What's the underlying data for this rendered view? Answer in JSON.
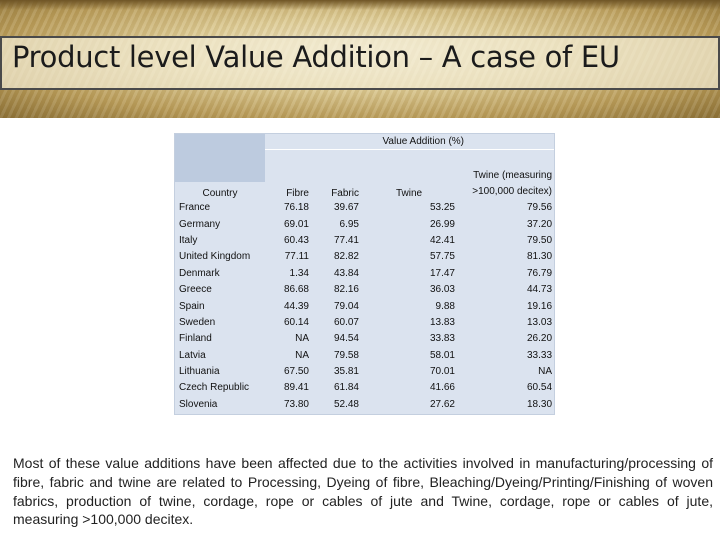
{
  "slide": {
    "title": "Product level Value Addition – A case of EU",
    "paragraph": "Most of these value additions have been affected due to the activities involved in manufacturing/processing of fibre, fabric and twine are related to Processing, Dyeing of fibre, Bleaching/Dyeing/Printing/Finishing of woven fabrics, production of twine, cordage, rope or cables of jute and Twine, cordage, rope or cables of jute, measuring >100,000 decitex."
  },
  "table": {
    "group_header": "Value Addition (%)",
    "headers": {
      "country": "Country",
      "fibre": "Fibre",
      "fabric": "Fabric",
      "twine": "Twine",
      "twine_large": "Twine (measuring >100,000 decitex)"
    },
    "rows": [
      {
        "country": "France",
        "fibre": "76.18",
        "fabric": "39.67",
        "twine": "53.25",
        "twine_large": "79.56"
      },
      {
        "country": "Germany",
        "fibre": "69.01",
        "fabric": "6.95",
        "twine": "26.99",
        "twine_large": "37.20"
      },
      {
        "country": "Italy",
        "fibre": "60.43",
        "fabric": "77.41",
        "twine": "42.41",
        "twine_large": "79.50"
      },
      {
        "country": "United Kingdom",
        "fibre": "77.11",
        "fabric": "82.82",
        "twine": "57.75",
        "twine_large": "81.30"
      },
      {
        "country": "Denmark",
        "fibre": "1.34",
        "fabric": "43.84",
        "twine": "17.47",
        "twine_large": "76.79"
      },
      {
        "country": "Greece",
        "fibre": "86.68",
        "fabric": "82.16",
        "twine": "36.03",
        "twine_large": "44.73"
      },
      {
        "country": "Spain",
        "fibre": "44.39",
        "fabric": "79.04",
        "twine": "9.88",
        "twine_large": "19.16"
      },
      {
        "country": "Sweden",
        "fibre": "60.14",
        "fabric": "60.07",
        "twine": "13.83",
        "twine_large": "13.03"
      },
      {
        "country": "Finland",
        "fibre": "NA",
        "fabric": "94.54",
        "twine": "33.83",
        "twine_large": "26.20"
      },
      {
        "country": "Latvia",
        "fibre": "NA",
        "fabric": "79.58",
        "twine": "58.01",
        "twine_large": "33.33"
      },
      {
        "country": "Lithuania",
        "fibre": "67.50",
        "fabric": "35.81",
        "twine": "70.01",
        "twine_large": "NA"
      },
      {
        "country": "Czech Republic",
        "fibre": "89.41",
        "fabric": "61.84",
        "twine": "41.66",
        "twine_large": "60.54"
      },
      {
        "country": "Slovenia",
        "fibre": "73.80",
        "fabric": "52.48",
        "twine": "27.62",
        "twine_large": "18.30"
      }
    ]
  }
}
